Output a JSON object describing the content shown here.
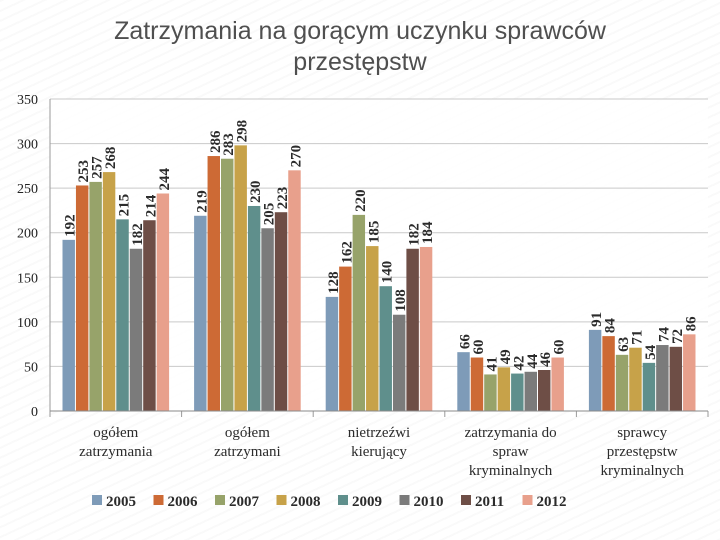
{
  "title": {
    "line1": "Zatrzymania na gorącym uczynku sprawców",
    "line2": "przestępstw"
  },
  "chart_data": {
    "type": "bar",
    "title": "Zatrzymania na gorącym uczynku sprawców przestępstw",
    "ylim": [
      0,
      350
    ],
    "yticks": [
      0,
      50,
      100,
      150,
      200,
      250,
      300,
      350
    ],
    "grid": true,
    "legend_position": "bottom",
    "categories": [
      [
        "ogółem",
        "zatrzymania"
      ],
      [
        "ogółem",
        "zatrzymani"
      ],
      [
        "nietrzeźwi",
        "kierujący"
      ],
      [
        "zatrzymania do",
        "spraw",
        "kryminalnych"
      ],
      [
        "sprawcy",
        "przestępstw",
        "kryminalnych"
      ]
    ],
    "series": [
      {
        "name": "2005",
        "color": "#7e9bb8",
        "values": [
          192,
          219,
          128,
          66,
          91
        ]
      },
      {
        "name": "2006",
        "color": "#cd6a35",
        "values": [
          253,
          286,
          162,
          60,
          84
        ]
      },
      {
        "name": "2007",
        "color": "#97a36a",
        "values": [
          257,
          283,
          220,
          41,
          63
        ]
      },
      {
        "name": "2008",
        "color": "#c7a249",
        "values": [
          268,
          298,
          185,
          49,
          71
        ]
      },
      {
        "name": "2009",
        "color": "#5f8f8c",
        "values": [
          215,
          230,
          140,
          42,
          54
        ]
      },
      {
        "name": "2010",
        "color": "#7b7b7b",
        "values": [
          182,
          205,
          108,
          44,
          74
        ]
      },
      {
        "name": "2011",
        "color": "#6e4e46",
        "values": [
          214,
          223,
          182,
          46,
          72
        ]
      },
      {
        "name": "2012",
        "color": "#e8a08c",
        "values": [
          244,
          270,
          184,
          60,
          86
        ]
      }
    ]
  }
}
